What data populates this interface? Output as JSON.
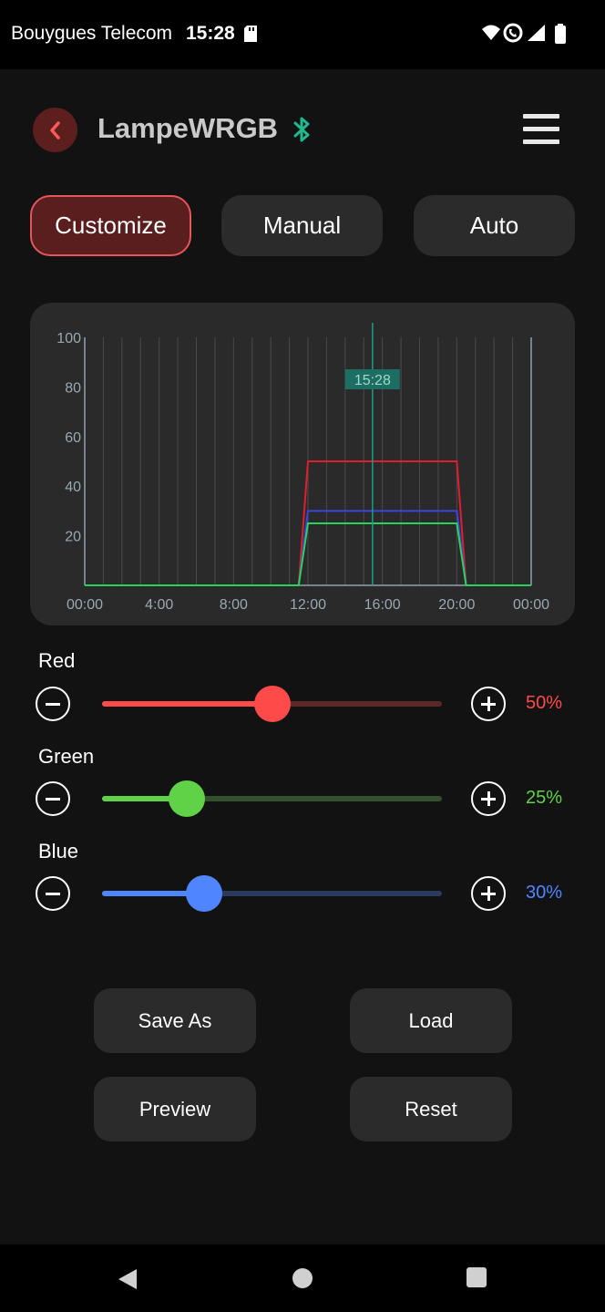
{
  "status_bar": {
    "carrier": "Bouygues Telecom",
    "time": "15:28",
    "icons": [
      "sd-card-icon",
      "wifi-icon",
      "vowifi-icon",
      "signal-icon",
      "battery-icon"
    ]
  },
  "header": {
    "title": "LampeWRGB",
    "back_icon": "chevron-left-icon",
    "bluetooth_icon": "bluetooth-icon",
    "menu_icon": "hamburger-menu-icon"
  },
  "tabs": [
    {
      "label": "Customize",
      "active": true
    },
    {
      "label": "Manual",
      "active": false
    },
    {
      "label": "Auto",
      "active": false
    }
  ],
  "chart_data": {
    "type": "line",
    "xlabel": "",
    "ylabel": "",
    "x_tick_labels": [
      "00:00",
      "4:00",
      "8:00",
      "12:00",
      "16:00",
      "20:00",
      "00:00"
    ],
    "y_tick_labels": [
      "20",
      "40",
      "60",
      "80",
      "100"
    ],
    "xlim": [
      0,
      24
    ],
    "ylim": [
      0,
      100
    ],
    "grid": true,
    "current_time_marker": {
      "x": 15.47,
      "label": "15:28"
    },
    "series": [
      {
        "color": "#e01e2e",
        "x": [
          0,
          11.5,
          12,
          20,
          20.5,
          24
        ],
        "y": [
          0,
          0,
          50,
          50,
          0,
          0
        ]
      },
      {
        "color": "#3a45e0",
        "x": [
          0,
          11.5,
          12,
          20,
          20.5,
          24
        ],
        "y": [
          0,
          0,
          30,
          30,
          0,
          0
        ]
      },
      {
        "color": "#27d35c",
        "x": [
          0,
          11.5,
          12,
          20,
          20.5,
          24
        ],
        "y": [
          0,
          0,
          25,
          25,
          0,
          0
        ]
      }
    ]
  },
  "channels": [
    {
      "label": "Red",
      "value": 50,
      "value_text": "50%",
      "color": "#ff4a4a",
      "track_color": "#5c2828"
    },
    {
      "label": "Green",
      "value": 25,
      "value_text": "25%",
      "color": "#5fd247",
      "track_color": "#33502c"
    },
    {
      "label": "Blue",
      "value": 30,
      "value_text": "30%",
      "color": "#4f86ff",
      "track_color": "#2a3a5c"
    }
  ],
  "actions": {
    "save_as": "Save As",
    "load": "Load",
    "preview": "Preview",
    "reset": "Reset"
  },
  "nav_bar": {
    "icons": [
      "nav-back-icon",
      "nav-home-icon",
      "nav-recents-icon"
    ]
  }
}
